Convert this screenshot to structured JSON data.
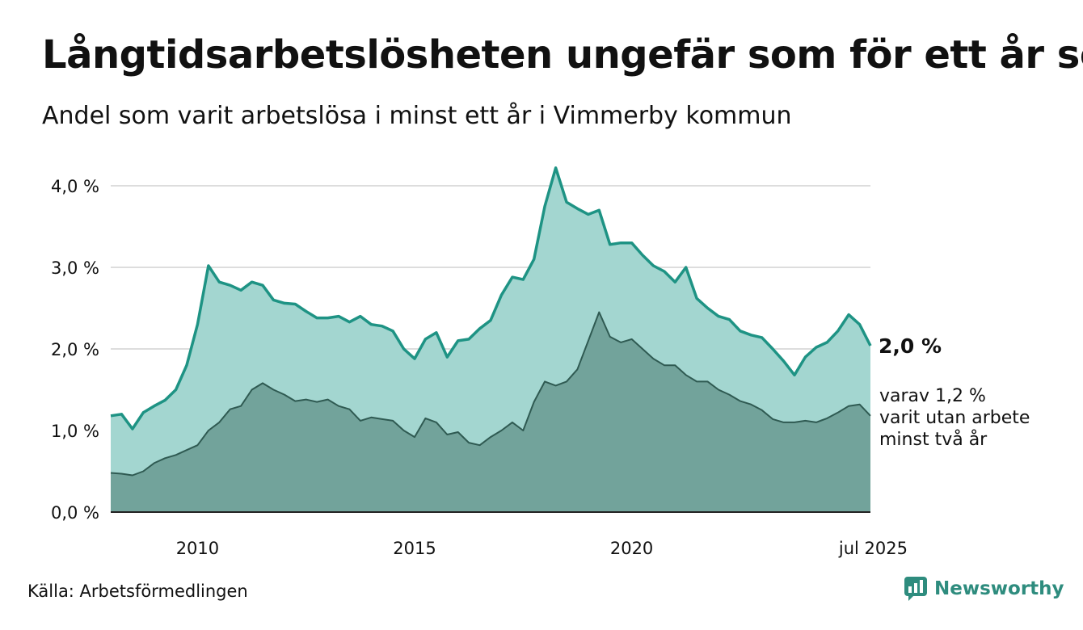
{
  "header": {
    "title": "Långtidsarbetslösheten ungefär som för ett år sen",
    "subtitle": "Andel som varit arbetslösa i minst ett år i Vimmerby kommun"
  },
  "footer": {
    "source": "Källa: Arbetsförmedlingen",
    "logo_text": "Newsworthy"
  },
  "colors": {
    "total_line": "#1e9384",
    "total_fill": "#a3d6d0",
    "sub_line": "#2f5a52",
    "sub_fill": "#72a39b",
    "grid": "#dddddd",
    "logo": "#2e8c7e"
  },
  "chart_data": {
    "type": "area",
    "title": "Långtidsarbetslösheten ungefär som för ett år sen",
    "subtitle": "Andel som varit arbetslösa i minst ett år i Vimmerby kommun",
    "xlim": [
      2008.0,
      2025.5
    ],
    "ylim": [
      0,
      4.3
    ],
    "grid": true,
    "y_ticks": [
      {
        "value": 0,
        "label": "0,0 %"
      },
      {
        "value": 1,
        "label": "1,0 %"
      },
      {
        "value": 2,
        "label": "2,0 %"
      },
      {
        "value": 3,
        "label": "3,0 %"
      },
      {
        "value": 4,
        "label": "4,0 %"
      }
    ],
    "x_ticks": [
      {
        "value": 2010,
        "label": "2010"
      },
      {
        "value": 2015,
        "label": "2015"
      },
      {
        "value": 2020,
        "label": "2020"
      },
      {
        "value": 2025.5,
        "label": "jul 2025"
      }
    ],
    "series": [
      {
        "name": "",
        "end_label": "2,0 %",
        "x": [
          2008.0,
          2008.25,
          2008.5,
          2008.75,
          2009.0,
          2009.25,
          2009.5,
          2009.75,
          2010.0,
          2010.25,
          2010.5,
          2010.75,
          2011.0,
          2011.25,
          2011.5,
          2011.75,
          2012.0,
          2012.25,
          2012.5,
          2012.75,
          2013.0,
          2013.25,
          2013.5,
          2013.75,
          2014.0,
          2014.25,
          2014.5,
          2014.75,
          2015.0,
          2015.25,
          2015.5,
          2015.75,
          2016.0,
          2016.25,
          2016.5,
          2016.75,
          2017.0,
          2017.25,
          2017.5,
          2017.75,
          2018.0,
          2018.25,
          2018.5,
          2018.75,
          2019.0,
          2019.25,
          2019.5,
          2019.75,
          2020.0,
          2020.25,
          2020.5,
          2020.75,
          2021.0,
          2021.25,
          2021.5,
          2021.75,
          2022.0,
          2022.25,
          2022.5,
          2022.75,
          2023.0,
          2023.25,
          2023.5,
          2023.75,
          2024.0,
          2024.25,
          2024.5,
          2024.75,
          2025.0,
          2025.25,
          2025.5
        ],
        "values": [
          1.18,
          1.2,
          1.02,
          1.22,
          1.3,
          1.37,
          1.5,
          1.8,
          2.3,
          3.02,
          2.82,
          2.78,
          2.72,
          2.82,
          2.78,
          2.6,
          2.56,
          2.55,
          2.46,
          2.38,
          2.38,
          2.4,
          2.33,
          2.4,
          2.3,
          2.28,
          2.22,
          2.0,
          1.88,
          2.12,
          2.2,
          1.9,
          2.1,
          2.12,
          2.25,
          2.35,
          2.66,
          2.88,
          2.85,
          3.1,
          3.75,
          4.22,
          3.8,
          3.72,
          3.65,
          3.7,
          3.28,
          3.3,
          3.3,
          3.15,
          3.02,
          2.95,
          2.82,
          3.0,
          2.62,
          2.5,
          2.4,
          2.36,
          2.22,
          2.17,
          2.14,
          2.0,
          1.85,
          1.68,
          1.9,
          2.02,
          2.08,
          2.22,
          2.42,
          2.3,
          2.04
        ]
      },
      {
        "name": "",
        "end_label_lines": [
          "varav 1,2 %",
          "varit utan arbete",
          "minst två år"
        ],
        "x": [
          2008.0,
          2008.25,
          2008.5,
          2008.75,
          2009.0,
          2009.25,
          2009.5,
          2009.75,
          2010.0,
          2010.25,
          2010.5,
          2010.75,
          2011.0,
          2011.25,
          2011.5,
          2011.75,
          2012.0,
          2012.25,
          2012.5,
          2012.75,
          2013.0,
          2013.25,
          2013.5,
          2013.75,
          2014.0,
          2014.25,
          2014.5,
          2014.75,
          2015.0,
          2015.25,
          2015.5,
          2015.75,
          2016.0,
          2016.25,
          2016.5,
          2016.75,
          2017.0,
          2017.25,
          2017.5,
          2017.75,
          2018.0,
          2018.25,
          2018.5,
          2018.75,
          2019.0,
          2019.25,
          2019.5,
          2019.75,
          2020.0,
          2020.25,
          2020.5,
          2020.75,
          2021.0,
          2021.25,
          2021.5,
          2021.75,
          2022.0,
          2022.25,
          2022.5,
          2022.75,
          2023.0,
          2023.25,
          2023.5,
          2023.75,
          2024.0,
          2024.25,
          2024.5,
          2024.75,
          2025.0,
          2025.25,
          2025.5
        ],
        "values": [
          0.48,
          0.47,
          0.45,
          0.5,
          0.6,
          0.66,
          0.7,
          0.76,
          0.82,
          1.0,
          1.1,
          1.26,
          1.3,
          1.5,
          1.58,
          1.5,
          1.44,
          1.36,
          1.38,
          1.35,
          1.38,
          1.3,
          1.26,
          1.12,
          1.16,
          1.14,
          1.12,
          1.0,
          0.92,
          1.15,
          1.1,
          0.95,
          0.98,
          0.85,
          0.82,
          0.92,
          1.0,
          1.1,
          1.0,
          1.35,
          1.6,
          1.55,
          1.6,
          1.75,
          2.1,
          2.45,
          2.15,
          2.08,
          2.12,
          2.0,
          1.88,
          1.8,
          1.8,
          1.68,
          1.6,
          1.6,
          1.5,
          1.44,
          1.36,
          1.32,
          1.25,
          1.14,
          1.1,
          1.1,
          1.12,
          1.1,
          1.15,
          1.22,
          1.3,
          1.32,
          1.18
        ]
      }
    ]
  }
}
